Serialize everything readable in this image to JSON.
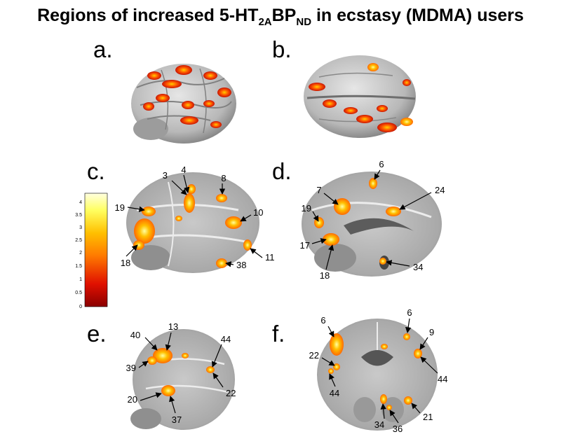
{
  "title": {
    "prefix": "Regions of increased 5-HT",
    "sub1": "2A",
    "mid": "BP",
    "sub2": "ND",
    "suffix": " in ecstasy (MDMA) users"
  },
  "panels": [
    "a.",
    "b.",
    "c.",
    "d.",
    "e.",
    "f."
  ],
  "colorbar": {
    "ticks": [
      "4",
      "3.5",
      "3",
      "2.5",
      "2",
      "1.5",
      "1",
      "0.5",
      "0"
    ],
    "colors": [
      "#ffffe0",
      "#ffff60",
      "#ffc000",
      "#ff7a00",
      "#e01000",
      "#8a0000"
    ]
  },
  "region_labels": {
    "c": [
      "3",
      "4",
      "8",
      "19",
      "10",
      "18",
      "11",
      "38"
    ],
    "d": [
      "6",
      "7",
      "24",
      "19",
      "17",
      "18",
      "34"
    ],
    "e": [
      "13",
      "40",
      "44",
      "39",
      "20",
      "22",
      "37"
    ],
    "f": [
      "6",
      "6",
      "9",
      "22",
      "44",
      "44",
      "34",
      "36",
      "21"
    ]
  }
}
